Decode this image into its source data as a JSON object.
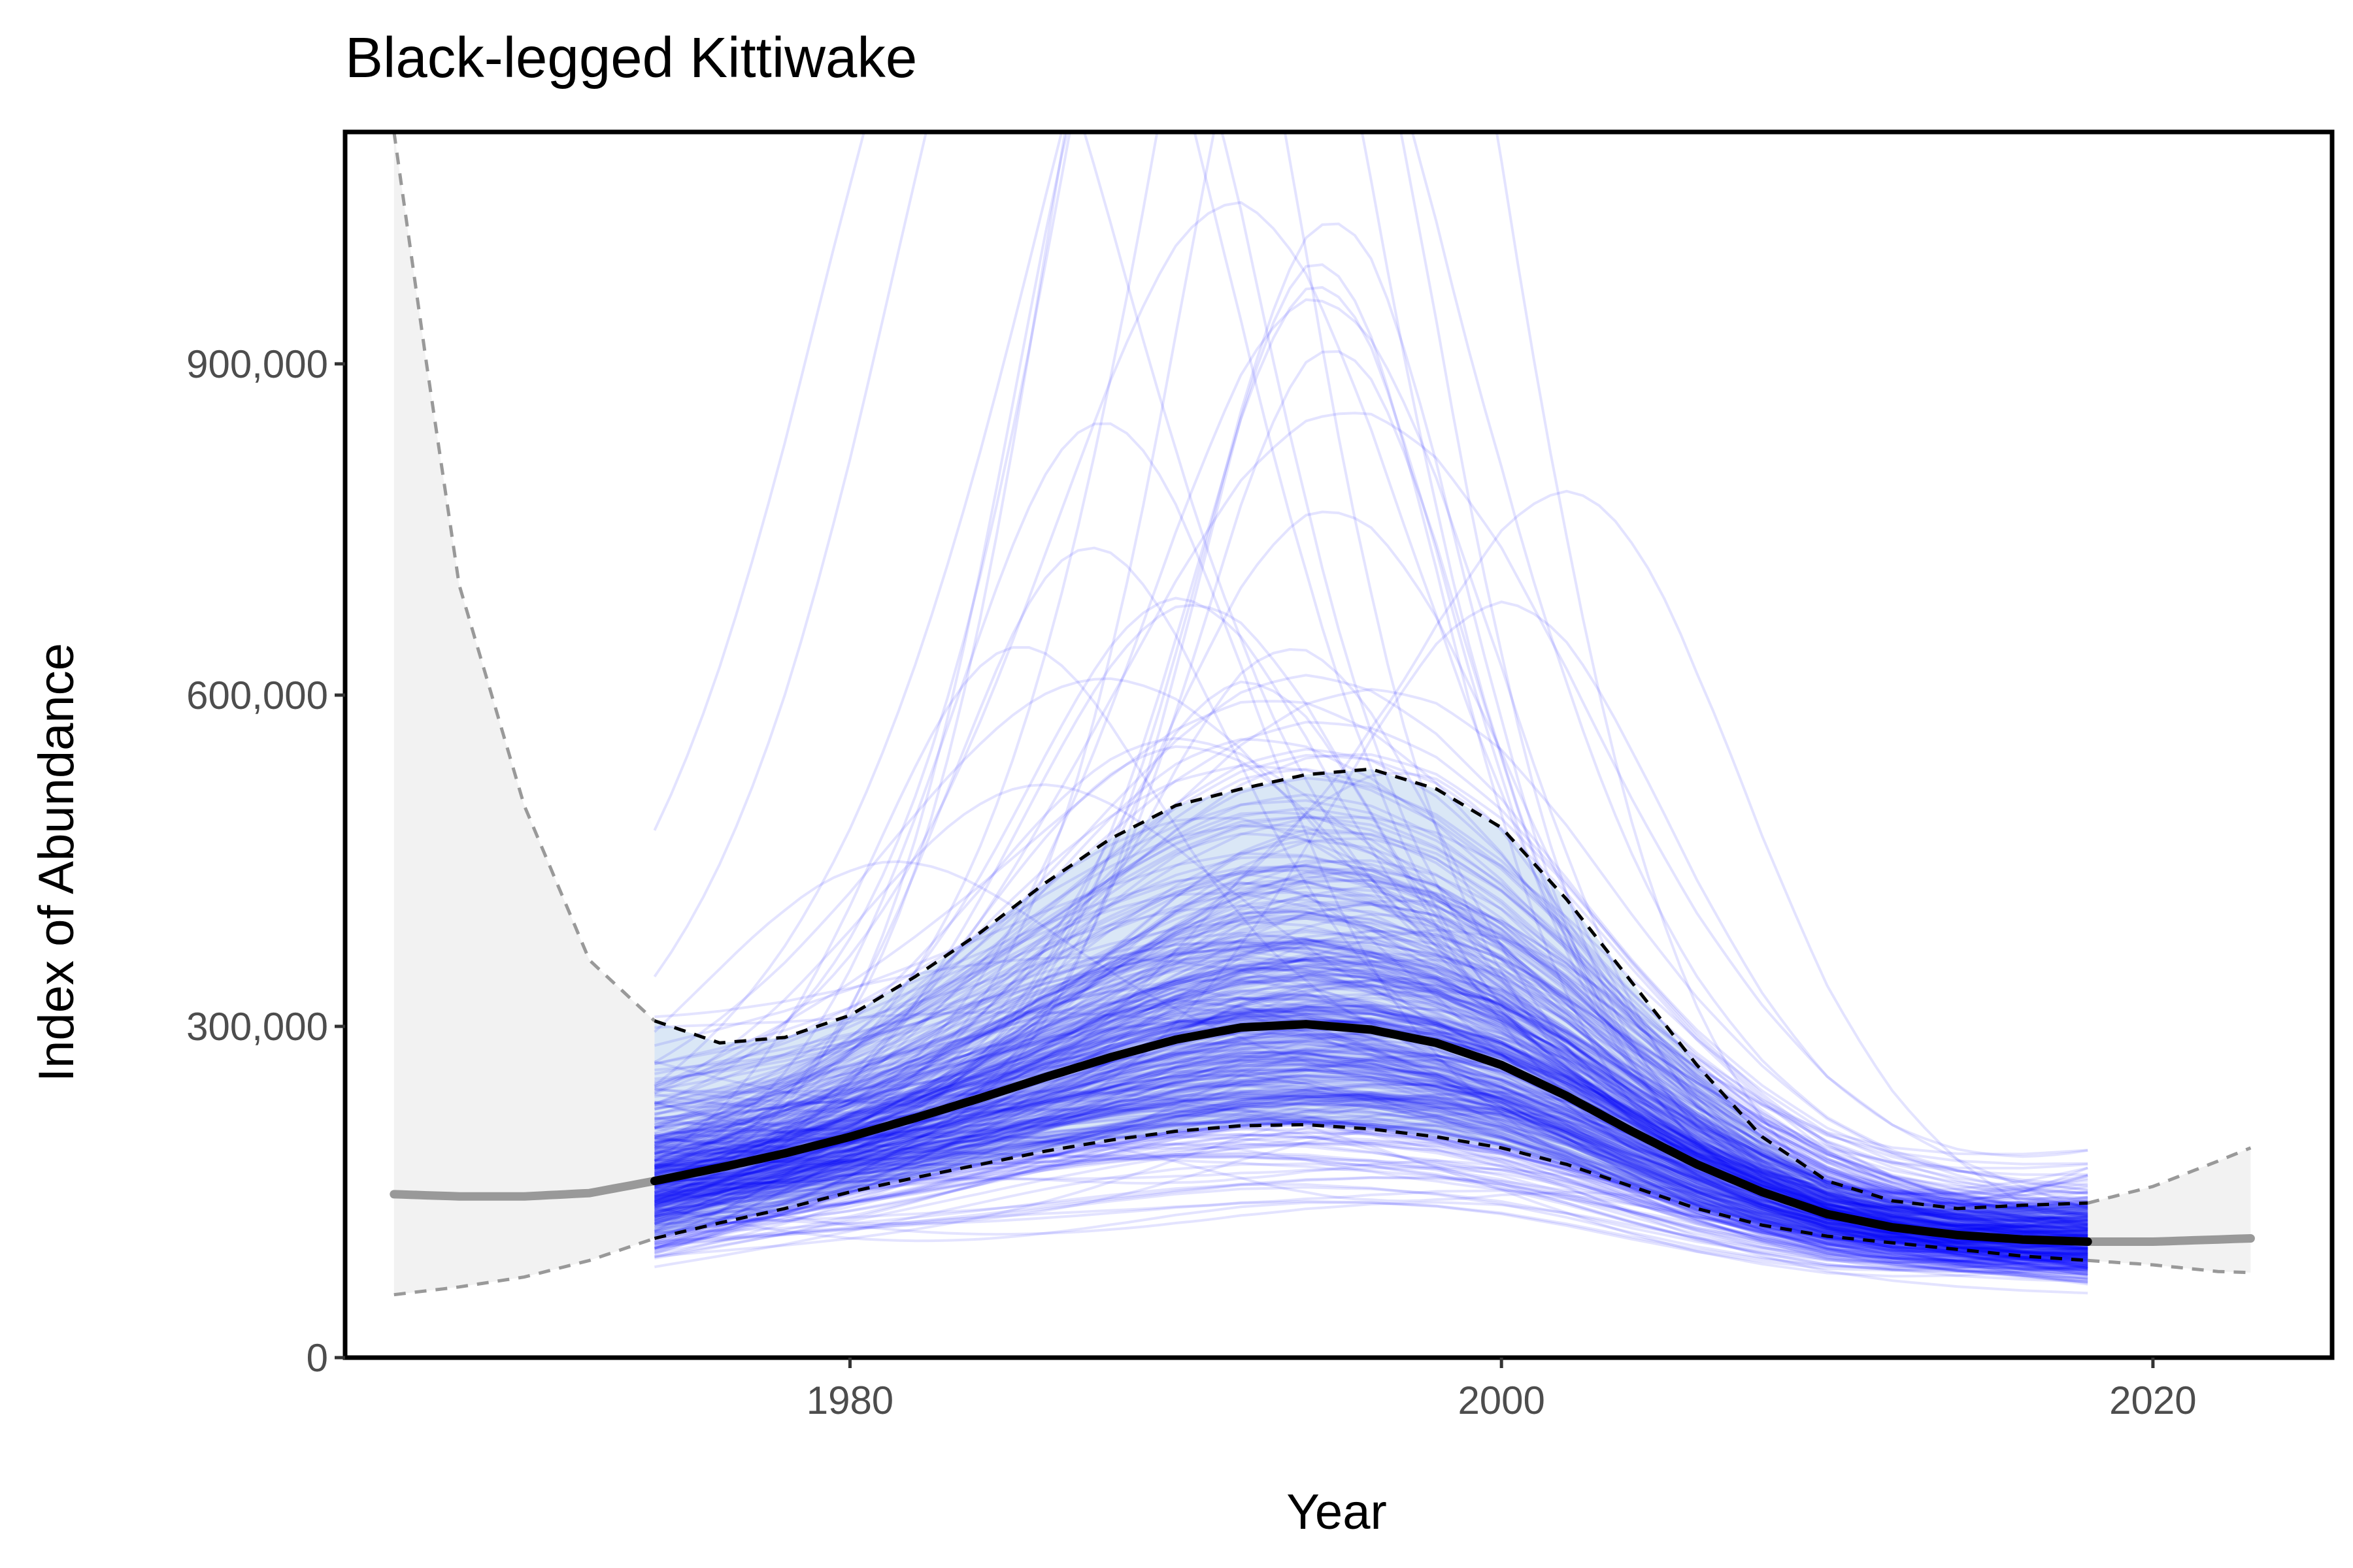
{
  "chart_data": {
    "type": "line",
    "title": "Black-legged Kittiwake",
    "xlabel": "Year",
    "ylabel": "Index of Abundance",
    "xlim": [
      1964.5,
      2025.5
    ],
    "ylim": [
      0,
      1110000
    ],
    "x_ticks": [
      1980,
      2000,
      2020
    ],
    "x_tick_labels": [
      "1980",
      "2000",
      "2020"
    ],
    "y_ticks": [
      0,
      300000,
      600000,
      900000
    ],
    "y_tick_labels": [
      "0",
      "300,000",
      "600,000",
      "900,000"
    ],
    "grid": false,
    "legend": "none",
    "colors": {
      "trajectories": "#0000ff",
      "median": "#000000",
      "extrapolation": "#999999",
      "interval_fill_extrapolated": "#f2f2f2",
      "interval_fill_observed": "#d6e4f5"
    },
    "observed_years": [
      1974,
      2018
    ],
    "series": [
      {
        "role": "median",
        "x": [
          1966,
          1968,
          1970,
          1972,
          1974,
          1976,
          1978,
          1980,
          1982,
          1984,
          1986,
          1988,
          1990,
          1992,
          1994,
          1996,
          1998,
          2000,
          2002,
          2004,
          2006,
          2008,
          2010,
          2012,
          2014,
          2016,
          2018,
          2020,
          2022,
          2023
        ],
        "y": [
          148000,
          146000,
          146000,
          149000,
          160000,
          172000,
          185000,
          200000,
          217000,
          235000,
          254000,
          272000,
          288000,
          299000,
          302000,
          297000,
          285000,
          265000,
          237000,
          205000,
          175000,
          150000,
          130000,
          118000,
          111000,
          107000,
          105000,
          105000,
          107000,
          108000
        ]
      },
      {
        "role": "upper-95",
        "x": [
          1966,
          1967,
          1968,
          1970,
          1972,
          1974,
          1976,
          1978,
          1980,
          1982,
          1984,
          1986,
          1988,
          1990,
          1992,
          1994,
          1996,
          1998,
          2000,
          2002,
          2004,
          2006,
          2008,
          2010,
          2012,
          2014,
          2016,
          2018,
          2020,
          2022,
          2023
        ],
        "y": [
          1110000,
          900000,
          700000,
          500000,
          360000,
          305000,
          285000,
          290000,
          310000,
          345000,
          385000,
          430000,
          470000,
          500000,
          515000,
          528000,
          533000,
          515000,
          480000,
          415000,
          340000,
          265000,
          200000,
          160000,
          142000,
          135000,
          138000,
          140000,
          155000,
          178000,
          190000
        ]
      },
      {
        "role": "lower-95",
        "x": [
          1966,
          1968,
          1970,
          1972,
          1974,
          1976,
          1978,
          1980,
          1982,
          1984,
          1986,
          1988,
          1990,
          1992,
          1994,
          1996,
          1998,
          2000,
          2002,
          2004,
          2006,
          2008,
          2010,
          2012,
          2014,
          2016,
          2018,
          2020,
          2022,
          2023
        ],
        "y": [
          57000,
          64000,
          73000,
          88000,
          108000,
          122000,
          135000,
          150000,
          163000,
          175000,
          187000,
          197000,
          205000,
          210000,
          211000,
          207000,
          200000,
          190000,
          175000,
          155000,
          135000,
          120000,
          110000,
          104000,
          98000,
          92000,
          88000,
          84000,
          78000,
          77000
        ]
      }
    ]
  }
}
